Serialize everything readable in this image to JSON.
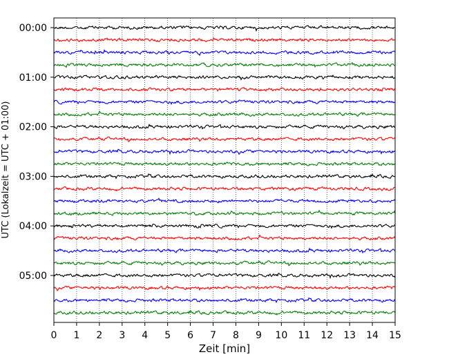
{
  "chart_data": {
    "type": "line",
    "chart_kind": "helicorder",
    "title": "",
    "xlabel": "Zeit  [min]",
    "ylabel": "UTC (Lokalzeit = UTC + 01:00)",
    "xlim": [
      0,
      15
    ],
    "x_ticks": [
      "0",
      "1",
      "2",
      "3",
      "4",
      "5",
      "6",
      "7",
      "8",
      "9",
      "10",
      "11",
      "12",
      "13",
      "14",
      "15"
    ],
    "y_tick_labels": [
      "00:00",
      "01:00",
      "02:00",
      "03:00",
      "04:00",
      "05:00"
    ],
    "trace_count": 24,
    "trace_interval_min": 15,
    "trace_colors": [
      "#000000",
      "#ff0000",
      "#0000ff",
      "#007f00"
    ],
    "grid": "vertical dotted",
    "legend": "none"
  }
}
